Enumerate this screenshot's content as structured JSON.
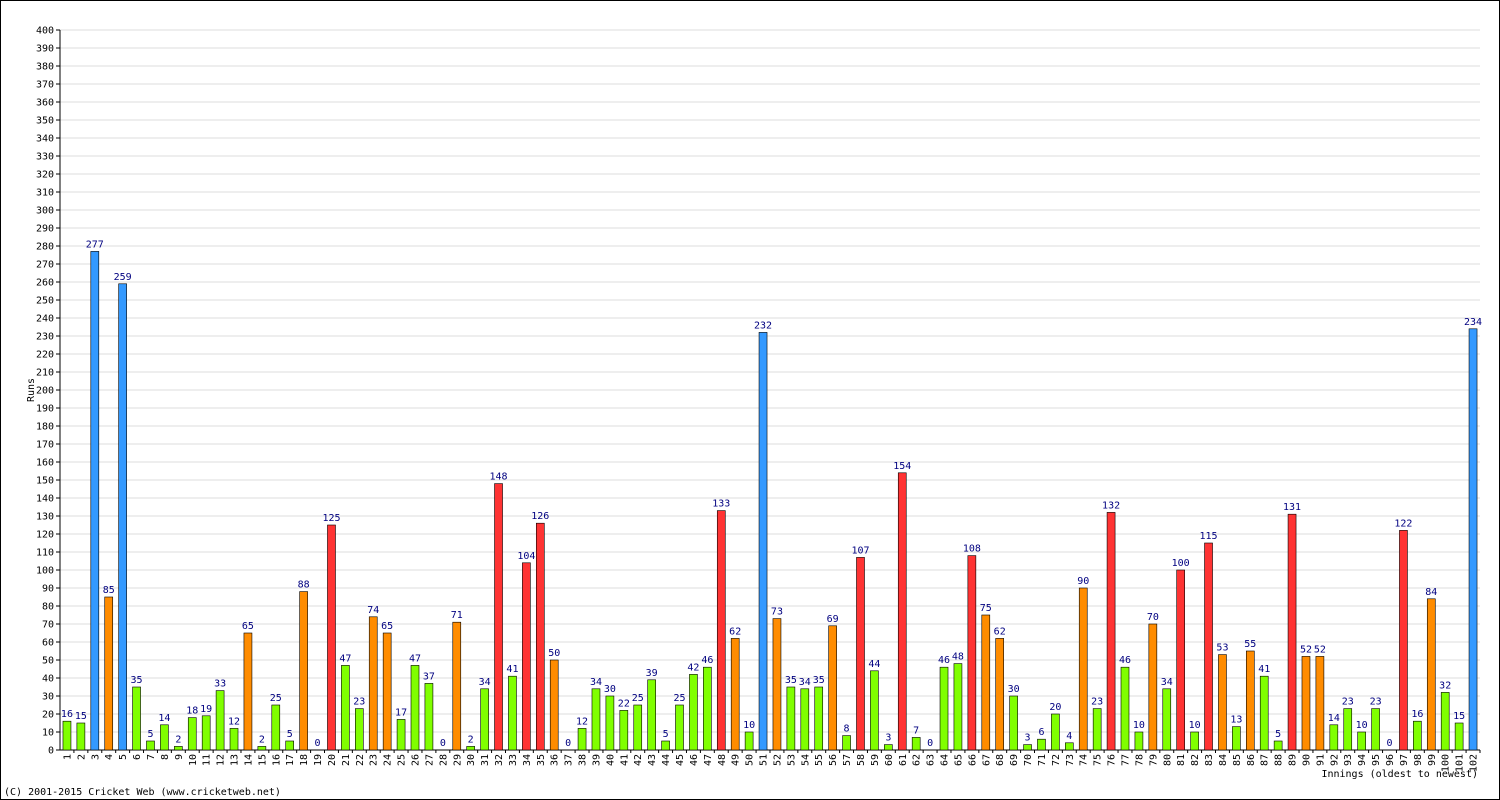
{
  "chart_data": {
    "type": "bar",
    "y_label": "Runs",
    "x_label": "Innings (oldest to newest)",
    "footer": "(C) 2001-2015 Cricket Web (www.cricketweb.net)",
    "categories": [
      "1",
      "2",
      "3",
      "4",
      "5",
      "6",
      "7",
      "8",
      "9",
      "10",
      "11",
      "12",
      "13",
      "14",
      "15",
      "16",
      "17",
      "18",
      "19",
      "20",
      "21",
      "22",
      "23",
      "24",
      "25",
      "26",
      "27",
      "28",
      "29",
      "30",
      "31",
      "32",
      "33",
      "34",
      "35",
      "36",
      "37",
      "38",
      "39",
      "40",
      "41",
      "42",
      "43",
      "44",
      "45",
      "46",
      "47",
      "48",
      "49",
      "50",
      "51",
      "52",
      "53",
      "54",
      "55",
      "56",
      "57",
      "58",
      "59",
      "60",
      "61",
      "62",
      "63",
      "64",
      "65",
      "66",
      "67",
      "68",
      "69",
      "70",
      "71",
      "72",
      "73",
      "74",
      "75",
      "76",
      "77",
      "78",
      "79",
      "80",
      "81",
      "82",
      "83",
      "84",
      "85",
      "86",
      "87",
      "88",
      "89",
      "90",
      "91",
      "92",
      "93",
      "94",
      "95",
      "96",
      "97",
      "98",
      "99",
      "100",
      "101",
      "102"
    ],
    "values": [
      16,
      15,
      277,
      85,
      259,
      35,
      5,
      14,
      2,
      18,
      19,
      33,
      12,
      65,
      2,
      25,
      5,
      88,
      0,
      125,
      47,
      23,
      74,
      65,
      17,
      47,
      37,
      0,
      71,
      2,
      34,
      148,
      41,
      104,
      126,
      50,
      0,
      12,
      34,
      30,
      22,
      25,
      39,
      5,
      25,
      42,
      46,
      133,
      62,
      10,
      232,
      73,
      35,
      34,
      35,
      69,
      8,
      107,
      44,
      3,
      154,
      7,
      0,
      46,
      48,
      108,
      75,
      62,
      30,
      3,
      6,
      20,
      4,
      90,
      23,
      132,
      46,
      10,
      70,
      34,
      100,
      10,
      115,
      53,
      13,
      55,
      41,
      5,
      131,
      52,
      52,
      14,
      23,
      10,
      23,
      0,
      122,
      16,
      84,
      32,
      15,
      234
    ],
    "colors": [
      "#80ff00",
      "#80ff00",
      "#3399ff",
      "#ff8c00",
      "#3399ff",
      "#80ff00",
      "#80ff00",
      "#80ff00",
      "#80ff00",
      "#80ff00",
      "#80ff00",
      "#80ff00",
      "#80ff00",
      "#ff8c00",
      "#80ff00",
      "#80ff00",
      "#80ff00",
      "#ff8c00",
      "#80ff00",
      "#ff3333",
      "#80ff00",
      "#80ff00",
      "#ff8c00",
      "#ff8c00",
      "#80ff00",
      "#80ff00",
      "#80ff00",
      "#80ff00",
      "#ff8c00",
      "#80ff00",
      "#80ff00",
      "#ff3333",
      "#80ff00",
      "#ff3333",
      "#ff3333",
      "#ff8c00",
      "#80ff00",
      "#80ff00",
      "#80ff00",
      "#80ff00",
      "#80ff00",
      "#80ff00",
      "#80ff00",
      "#80ff00",
      "#80ff00",
      "#80ff00",
      "#80ff00",
      "#ff3333",
      "#ff8c00",
      "#80ff00",
      "#3399ff",
      "#ff8c00",
      "#80ff00",
      "#80ff00",
      "#80ff00",
      "#ff8c00",
      "#80ff00",
      "#ff3333",
      "#80ff00",
      "#80ff00",
      "#ff3333",
      "#80ff00",
      "#80ff00",
      "#80ff00",
      "#80ff00",
      "#ff3333",
      "#ff8c00",
      "#ff8c00",
      "#80ff00",
      "#80ff00",
      "#80ff00",
      "#80ff00",
      "#80ff00",
      "#ff8c00",
      "#80ff00",
      "#ff3333",
      "#80ff00",
      "#80ff00",
      "#ff8c00",
      "#80ff00",
      "#ff3333",
      "#80ff00",
      "#ff3333",
      "#ff8c00",
      "#80ff00",
      "#ff8c00",
      "#80ff00",
      "#80ff00",
      "#ff3333",
      "#ff8c00",
      "#ff8c00",
      "#80ff00",
      "#80ff00",
      "#80ff00",
      "#80ff00",
      "#80ff00",
      "#ff3333",
      "#80ff00",
      "#ff8c00",
      "#80ff00",
      "#80ff00",
      "#3399ff"
    ],
    "ylim": [
      0,
      400
    ],
    "yticks": [
      0,
      10,
      20,
      30,
      40,
      50,
      60,
      70,
      80,
      90,
      100,
      110,
      120,
      130,
      140,
      150,
      160,
      170,
      180,
      190,
      200,
      210,
      220,
      230,
      240,
      250,
      260,
      270,
      280,
      290,
      300,
      310,
      320,
      330,
      340,
      350,
      360,
      370,
      380,
      390,
      400
    ],
    "grid": true
  }
}
